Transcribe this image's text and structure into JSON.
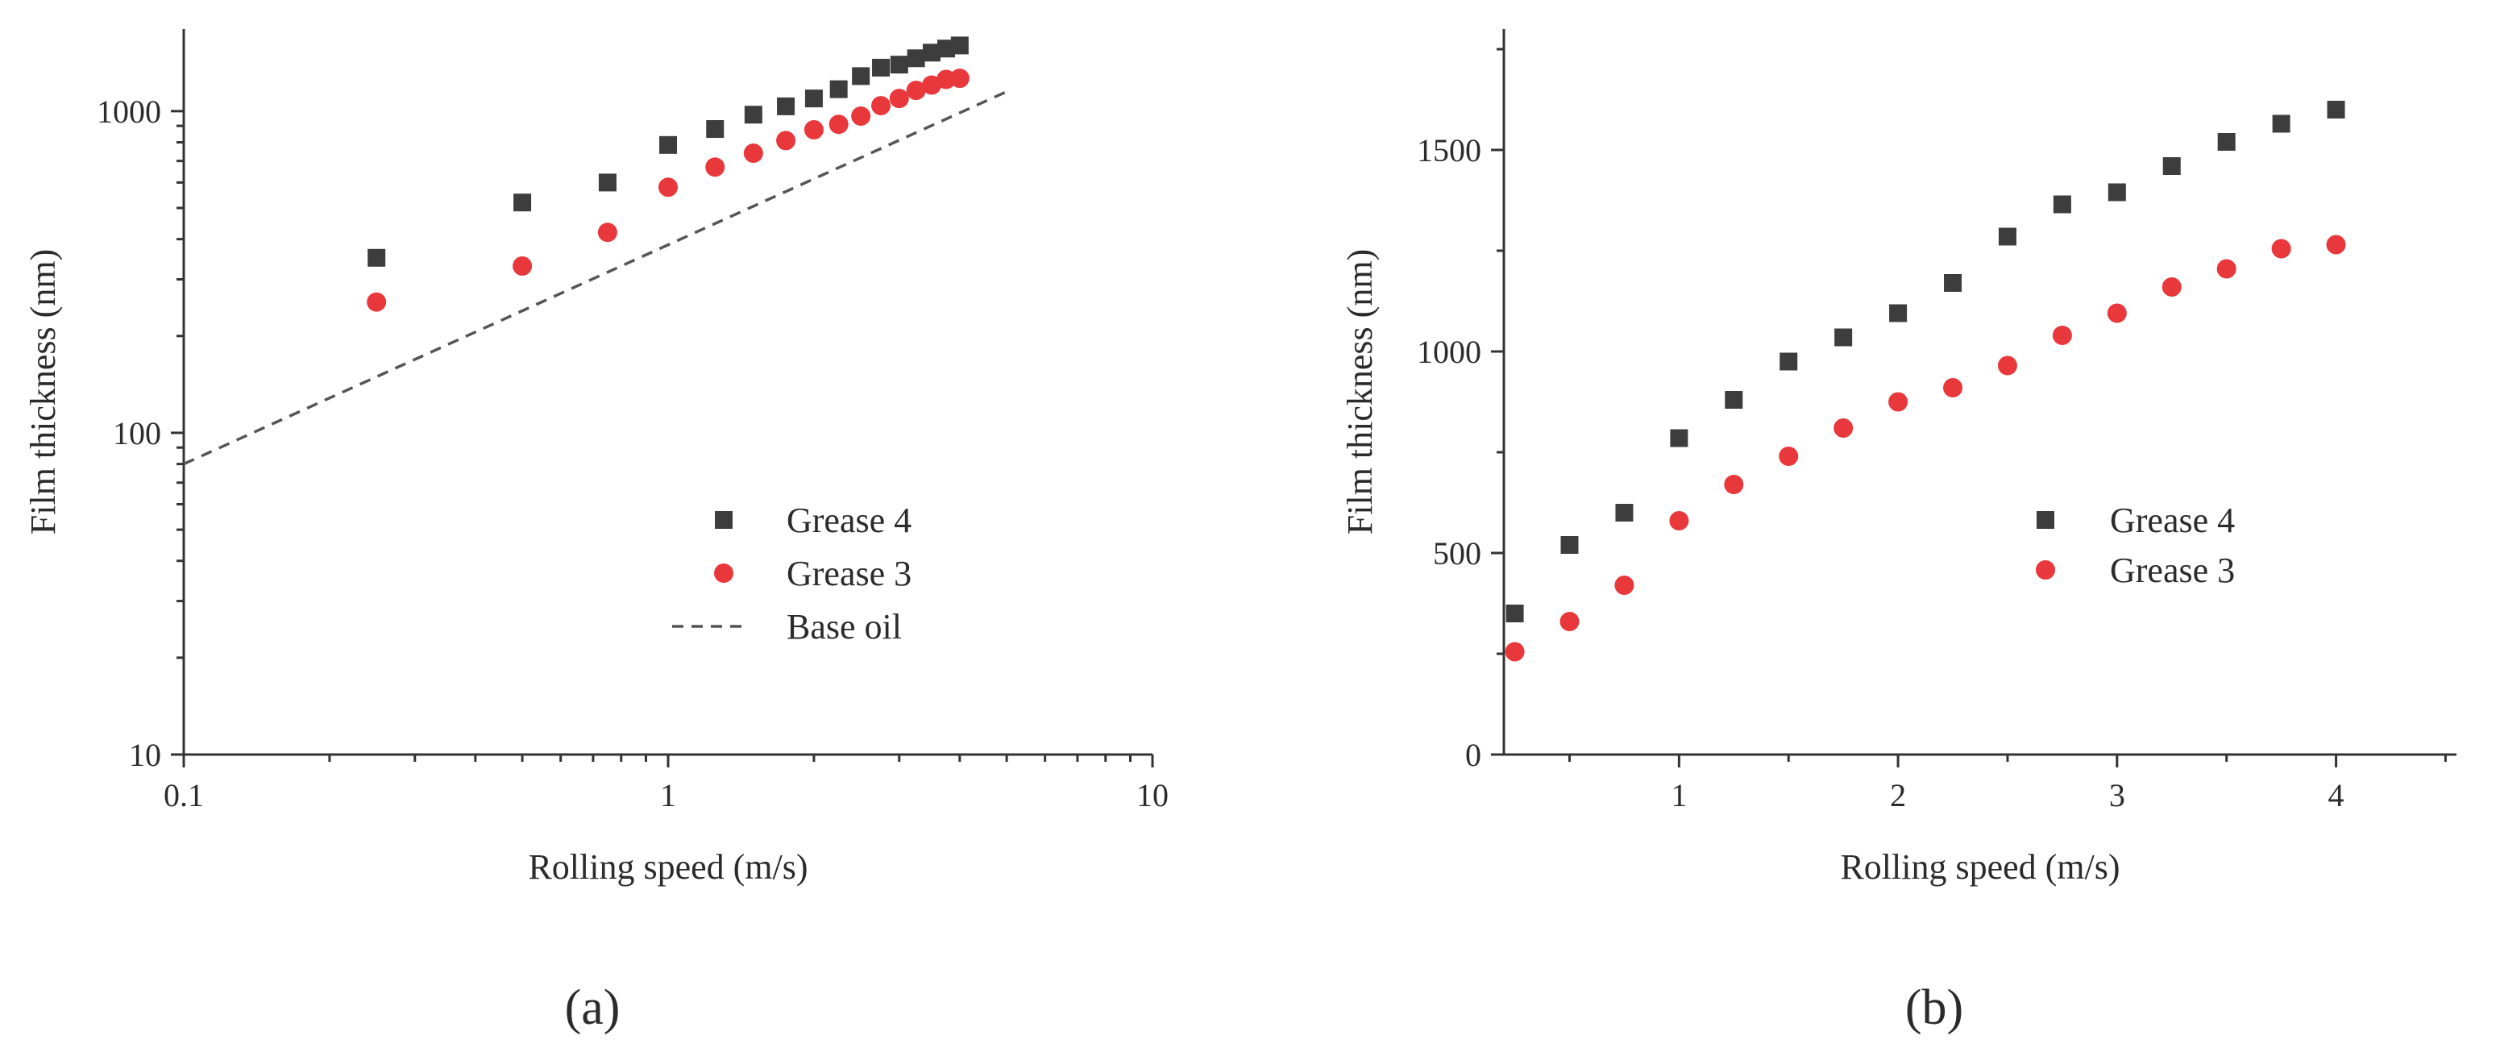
{
  "colors": {
    "grease4": "#3d3d3d",
    "grease3": "#e8383b",
    "base_oil": "#555555",
    "axis": "#333333"
  },
  "chart_data": [
    {
      "panel_label": "(a)",
      "type": "scatter",
      "scale": "log-log",
      "xlabel": "Rolling speed (m/s)",
      "ylabel": "Film thickness (nm)",
      "xlim": [
        0.1,
        10
      ],
      "ylim": [
        10,
        1800
      ],
      "x_ticks": [
        {
          "value": 0.1,
          "label": "0.1"
        },
        {
          "value": 1,
          "label": "1"
        },
        {
          "value": 10,
          "label": "10"
        }
      ],
      "y_ticks": [
        {
          "value": 10,
          "label": "10"
        },
        {
          "value": 100,
          "label": "100"
        },
        {
          "value": 1000,
          "label": "1000"
        }
      ],
      "legend_position": "center-right",
      "series": [
        {
          "name": "Grease 4",
          "marker": "square",
          "color": "#3d3d3d",
          "x": [
            0.25,
            0.5,
            0.75,
            1.0,
            1.25,
            1.5,
            1.75,
            2.0,
            2.25,
            2.5,
            2.75,
            3.0,
            3.25,
            3.5,
            3.75,
            4.0
          ],
          "y": [
            350,
            520,
            600,
            785,
            880,
            975,
            1035,
            1095,
            1170,
            1285,
            1365,
            1395,
            1460,
            1520,
            1565,
            1600
          ]
        },
        {
          "name": "Grease 3",
          "marker": "circle",
          "color": "#e8383b",
          "x": [
            0.25,
            0.5,
            0.75,
            1.0,
            1.25,
            1.5,
            1.75,
            2.0,
            2.25,
            2.5,
            2.75,
            3.0,
            3.25,
            3.5,
            3.75,
            4.0
          ],
          "y": [
            255,
            330,
            420,
            580,
            670,
            740,
            810,
            875,
            910,
            965,
            1040,
            1095,
            1160,
            1205,
            1255,
            1265
          ]
        },
        {
          "name": "Base oil",
          "type": "line",
          "style": "dashed",
          "color": "#555555",
          "x": [
            0.1,
            5.0
          ],
          "y": [
            80,
            1150
          ]
        }
      ]
    },
    {
      "panel_label": "(b)",
      "type": "scatter",
      "scale": "linear",
      "xlabel": "Rolling speed (m/s)",
      "ylabel": "Film thickness (nm)",
      "xlim": [
        0.2,
        4.55
      ],
      "ylim": [
        0,
        1800
      ],
      "x_ticks": [
        {
          "value": 1,
          "label": "1"
        },
        {
          "value": 2,
          "label": "2"
        },
        {
          "value": 3,
          "label": "3"
        },
        {
          "value": 4,
          "label": "4"
        }
      ],
      "y_ticks": [
        {
          "value": 0,
          "label": "0"
        },
        {
          "value": 500,
          "label": "500"
        },
        {
          "value": 1000,
          "label": "1000"
        },
        {
          "value": 1500,
          "label": "1500"
        }
      ],
      "legend_position": "center-right",
      "series": [
        {
          "name": "Grease 4",
          "marker": "square",
          "color": "#3d3d3d",
          "x": [
            0.25,
            0.5,
            0.75,
            1.0,
            1.25,
            1.5,
            1.75,
            2.0,
            2.25,
            2.5,
            2.75,
            3.0,
            3.25,
            3.5,
            3.75,
            4.0
          ],
          "y": [
            350,
            520,
            600,
            785,
            880,
            975,
            1035,
            1095,
            1170,
            1285,
            1365,
            1395,
            1460,
            1520,
            1565,
            1600
          ]
        },
        {
          "name": "Grease 3",
          "marker": "circle",
          "color": "#e8383b",
          "x": [
            0.25,
            0.5,
            0.75,
            1.0,
            1.25,
            1.5,
            1.75,
            2.0,
            2.25,
            2.5,
            2.75,
            3.0,
            3.25,
            3.5,
            3.75,
            4.0
          ],
          "y": [
            255,
            330,
            420,
            580,
            670,
            740,
            810,
            875,
            910,
            965,
            1040,
            1095,
            1160,
            1205,
            1255,
            1265
          ]
        }
      ]
    }
  ]
}
